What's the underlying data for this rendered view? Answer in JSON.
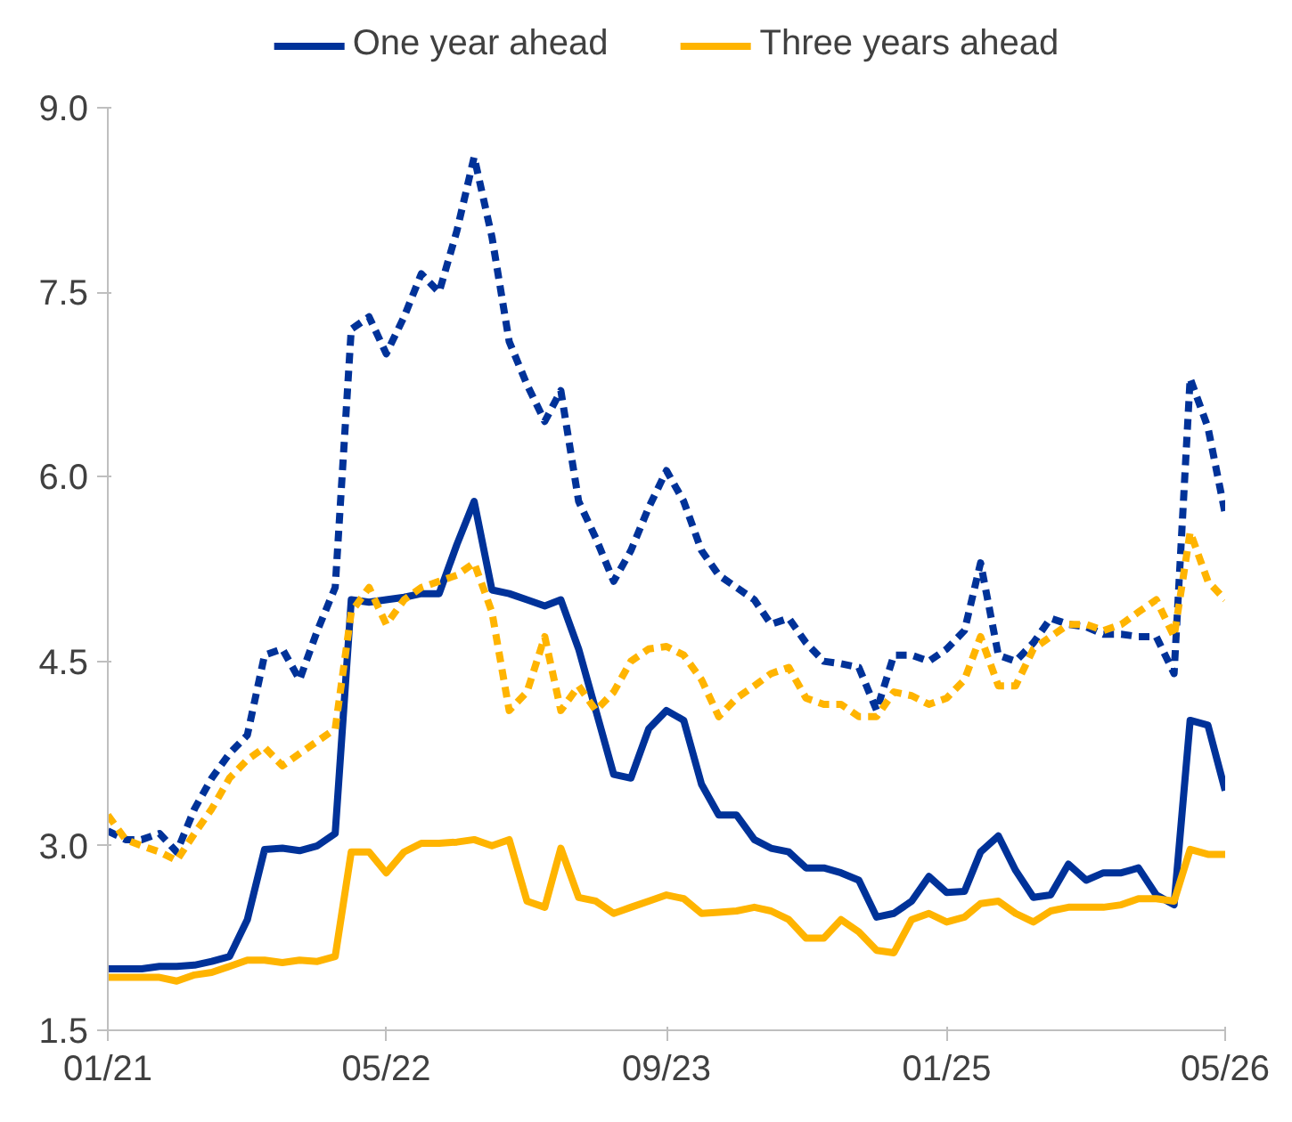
{
  "chart_data": {
    "type": "line",
    "x": [
      "2021-01",
      "2021-02",
      "2021-03",
      "2021-04",
      "2021-05",
      "2021-06",
      "2021-07",
      "2021-08",
      "2021-09",
      "2021-10",
      "2021-11",
      "2021-12",
      "2022-01",
      "2022-02",
      "2022-03",
      "2022-04",
      "2022-05",
      "2022-06",
      "2022-07",
      "2022-08",
      "2022-09",
      "2022-10",
      "2022-11",
      "2022-12",
      "2023-01",
      "2023-02",
      "2023-03",
      "2023-04",
      "2023-05",
      "2023-06",
      "2023-07",
      "2023-08",
      "2023-09",
      "2023-10",
      "2023-11",
      "2023-12",
      "2024-01",
      "2024-02",
      "2024-03",
      "2024-04",
      "2024-05",
      "2024-06",
      "2024-07",
      "2024-08",
      "2024-09",
      "2024-10",
      "2024-11",
      "2024-12",
      "2025-01",
      "2025-02",
      "2025-03",
      "2025-04",
      "2025-05",
      "2025-06",
      "2025-07",
      "2025-08",
      "2025-09",
      "2025-10",
      "2025-11",
      "2025-12",
      "2026-01",
      "2026-02",
      "2026-03",
      "2026-04",
      "2026-05"
    ],
    "series": [
      {
        "name": "One year ahead",
        "color": "#003299",
        "line_style": "solid",
        "values": [
          2.0,
          2.0,
          2.0,
          2.02,
          2.02,
          2.03,
          2.06,
          2.1,
          2.4,
          2.97,
          2.98,
          2.96,
          3.0,
          3.1,
          5.0,
          4.98,
          5.0,
          5.02,
          5.05,
          5.05,
          5.45,
          5.8,
          5.08,
          5.05,
          5.0,
          4.95,
          5.0,
          4.6,
          4.1,
          3.58,
          3.55,
          3.95,
          4.1,
          4.02,
          3.5,
          3.25,
          3.25,
          3.05,
          2.98,
          2.95,
          2.82,
          2.82,
          2.78,
          2.72,
          2.42,
          2.45,
          2.55,
          2.75,
          2.62,
          2.63,
          2.95,
          3.08,
          2.8,
          2.58,
          2.6,
          2.85,
          2.72,
          2.78,
          2.78,
          2.82,
          2.6,
          2.52,
          4.02,
          3.98,
          3.45
        ]
      },
      {
        "name": "Three years ahead",
        "color": "#ffb400",
        "line_style": "solid",
        "values": [
          1.93,
          1.93,
          1.93,
          1.93,
          1.9,
          1.95,
          1.97,
          2.02,
          2.07,
          2.07,
          2.05,
          2.07,
          2.06,
          2.1,
          2.95,
          2.95,
          2.78,
          2.95,
          3.02,
          3.02,
          3.03,
          3.05,
          3.0,
          3.05,
          2.55,
          2.5,
          2.98,
          2.58,
          2.55,
          2.45,
          2.5,
          2.55,
          2.6,
          2.57,
          2.45,
          2.46,
          2.47,
          2.5,
          2.47,
          2.4,
          2.25,
          2.25,
          2.4,
          2.3,
          2.15,
          2.13,
          2.4,
          2.45,
          2.38,
          2.42,
          2.53,
          2.55,
          2.45,
          2.38,
          2.47,
          2.5,
          2.5,
          2.5,
          2.52,
          2.57,
          2.57,
          2.55,
          2.97,
          2.93,
          2.93
        ]
      },
      {
        "color": "#003299",
        "line_style": "dashed",
        "values": [
          3.12,
          3.05,
          3.05,
          3.1,
          2.95,
          3.3,
          3.55,
          3.75,
          3.9,
          4.55,
          4.6,
          4.35,
          4.75,
          5.1,
          7.2,
          7.3,
          7.0,
          7.3,
          7.65,
          7.5,
          8.0,
          8.6,
          7.95,
          7.1,
          6.75,
          6.45,
          6.7,
          5.8,
          5.5,
          5.15,
          5.4,
          5.75,
          6.05,
          5.8,
          5.4,
          5.2,
          5.1,
          5.0,
          4.8,
          4.85,
          4.65,
          4.5,
          4.48,
          4.45,
          4.1,
          4.55,
          4.55,
          4.5,
          4.6,
          4.75,
          5.3,
          4.55,
          4.5,
          4.65,
          4.85,
          4.8,
          4.78,
          4.72,
          4.72,
          4.7,
          4.7,
          4.4,
          6.8,
          6.4,
          5.7
        ]
      },
      {
        "color": "#ffb400",
        "line_style": "dashed",
        "values": [
          3.25,
          3.05,
          3.0,
          2.95,
          2.88,
          3.1,
          3.3,
          3.55,
          3.7,
          3.8,
          3.65,
          3.75,
          3.85,
          3.95,
          4.9,
          5.1,
          4.8,
          5.0,
          5.1,
          5.15,
          5.2,
          5.3,
          4.9,
          4.1,
          4.25,
          4.7,
          4.1,
          4.3,
          4.1,
          4.25,
          4.5,
          4.6,
          4.62,
          4.55,
          4.35,
          4.05,
          4.2,
          4.3,
          4.4,
          4.45,
          4.2,
          4.15,
          4.15,
          4.05,
          4.05,
          4.25,
          4.22,
          4.15,
          4.2,
          4.35,
          4.7,
          4.3,
          4.3,
          4.6,
          4.7,
          4.8,
          4.8,
          4.75,
          4.8,
          4.9,
          5.0,
          4.7,
          5.55,
          5.15,
          5.0
        ]
      }
    ],
    "xlim": [
      "2021-01",
      "2026-05"
    ],
    "xticks": [
      {
        "value": "2021-01",
        "label": "01/21"
      },
      {
        "value": "2022-05",
        "label": "05/22"
      },
      {
        "value": "2023-09",
        "label": "09/23"
      },
      {
        "value": "2025-01",
        "label": "01/25"
      },
      {
        "value": "2026-05",
        "label": "05/26"
      }
    ],
    "ylim": [
      1.5,
      9.0
    ],
    "yticks": [
      {
        "value": 1.5,
        "label": "1.5"
      },
      {
        "value": 3,
        "label": "3.0"
      },
      {
        "value": 4.5,
        "label": "4.5"
      },
      {
        "value": 6,
        "label": "6.0"
      },
      {
        "value": 7.5,
        "label": "7.5"
      },
      {
        "value": 9,
        "label": "9.0"
      }
    ],
    "grid": false,
    "legend": "top",
    "marker": "none"
  }
}
